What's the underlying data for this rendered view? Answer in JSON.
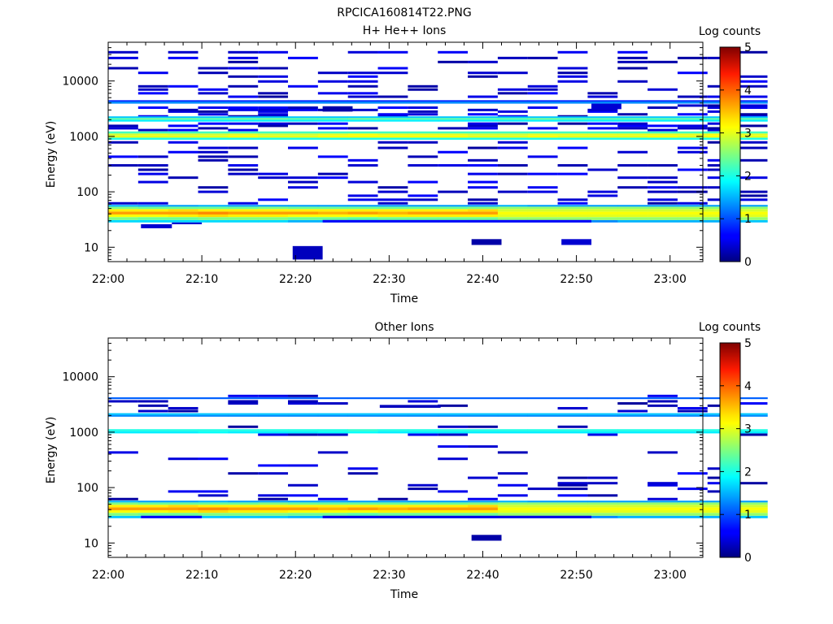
{
  "figure": {
    "title": "RPCICA160814T22.PNG"
  },
  "chart_data": [
    {
      "type": "heatmap",
      "title": "H+ He++ Ions",
      "xlabel": "Time",
      "ylabel": "Energy (eV)",
      "x_ticks": [
        "22:00",
        "22:10",
        "22:20",
        "22:30",
        "22:40",
        "22:50",
        "23:00"
      ],
      "x_tick_minutes": [
        0,
        10,
        20,
        30,
        40,
        50,
        60
      ],
      "xlim_minutes": [
        0,
        63.5
      ],
      "y_scale": "log",
      "ylim": [
        5.5,
        50000
      ],
      "y_ticks": [
        10,
        100,
        1000,
        10000
      ],
      "y_tick_labels": [
        "10",
        "100",
        "1000",
        "10000"
      ],
      "colorbar": {
        "label": "Log counts",
        "min": 0,
        "max": 5,
        "ticks": [
          "0",
          "1",
          "2",
          "3",
          "4",
          "5"
        ]
      },
      "time_bins": 22,
      "bin_width_minutes": 3.2,
      "bands": [
        {
          "e_low": 28,
          "e_high": 31,
          "values": [
            1.7,
            1.7,
            1.7,
            1.7,
            1.7,
            1.7,
            1.5,
            1.5,
            1.5,
            1.5,
            1.5,
            1.5,
            1.3,
            1.3,
            1.3,
            1.3,
            1.3,
            1.5,
            1.5,
            1.5,
            1.5,
            1.6
          ]
        },
        {
          "e_low": 31,
          "e_high": 35,
          "values": [
            2.5,
            2.4,
            2.4,
            2.5,
            2.5,
            2.5,
            2.4,
            2.4,
            2.3,
            2.4,
            2.4,
            2.4,
            2.4,
            2.6,
            2.6,
            2.6,
            2.6,
            2.6,
            2.6,
            2.6,
            2.6,
            2.6
          ]
        },
        {
          "e_low": 35,
          "e_high": 39,
          "values": [
            3.1,
            3.1,
            3.2,
            3.3,
            3.2,
            3.2,
            3.1,
            3.1,
            3.1,
            3.2,
            3.2,
            3.2,
            3.2,
            3.0,
            3.0,
            3.0,
            3.0,
            3.0,
            3.0,
            3.0,
            3.0,
            3.0
          ]
        },
        {
          "e_low": 39,
          "e_high": 44,
          "values": [
            3.6,
            3.6,
            3.6,
            3.7,
            3.6,
            3.6,
            3.6,
            3.5,
            3.6,
            3.5,
            3.6,
            3.6,
            3.6,
            3.1,
            3.1,
            3.1,
            3.1,
            3.1,
            3.1,
            3.1,
            3.1,
            3.1
          ]
        },
        {
          "e_low": 44,
          "e_high": 49,
          "values": [
            3.2,
            3.2,
            3.3,
            3.2,
            3.2,
            3.2,
            3.2,
            3.2,
            3.2,
            3.2,
            3.2,
            3.2,
            3.3,
            2.9,
            2.9,
            2.9,
            2.9,
            2.9,
            2.9,
            2.9,
            2.9,
            2.9
          ]
        },
        {
          "e_low": 49,
          "e_high": 54,
          "values": [
            2.5,
            2.4,
            2.4,
            2.4,
            2.4,
            2.5,
            2.4,
            2.4,
            2.4,
            2.4,
            2.4,
            2.4,
            2.5,
            2.6,
            2.6,
            2.6,
            2.6,
            2.6,
            2.6,
            2.6,
            2.6,
            2.6
          ]
        },
        {
          "e_low": 54,
          "e_high": 58,
          "values": [
            1.5,
            1.4,
            1.4,
            1.5,
            1.4,
            1.4,
            1.4,
            1.4,
            1.4,
            1.4,
            1.4,
            1.4,
            1.4,
            1.5,
            1.4,
            1.4,
            1.4,
            1.4,
            1.4,
            1.4,
            1.4,
            1.4
          ]
        },
        {
          "e_low": 870,
          "e_high": 950,
          "values": [
            2.0,
            2.0,
            2.0,
            2.0,
            2.0,
            2.0,
            2.0,
            2.0,
            2.0,
            2.0,
            2.0,
            2.0,
            2.0,
            2.0,
            2.0,
            2.0,
            2.0,
            2.0,
            2.0,
            2.0,
            2.0,
            2.0
          ]
        },
        {
          "e_low": 950,
          "e_high": 1040,
          "values": [
            3.0,
            3.0,
            3.0,
            3.0,
            3.1,
            3.0,
            3.0,
            3.1,
            3.1,
            3.1,
            3.1,
            3.1,
            3.0,
            3.0,
            3.1,
            3.0,
            3.0,
            3.0,
            3.1,
            3.0,
            3.1,
            3.0
          ]
        },
        {
          "e_low": 1040,
          "e_high": 1130,
          "values": [
            2.9,
            3.0,
            2.9,
            2.9,
            3.0,
            2.9,
            2.9,
            3.0,
            3.1,
            3.0,
            3.0,
            3.0,
            2.9,
            2.9,
            3.0,
            3.0,
            3.0,
            3.0,
            3.0,
            3.0,
            3.1,
            3.0
          ]
        },
        {
          "e_low": 1130,
          "e_high": 1230,
          "values": [
            2.2,
            2.2,
            2.2,
            2.2,
            2.2,
            2.2,
            2.2,
            2.2,
            2.2,
            2.2,
            2.2,
            2.2,
            2.2,
            2.2,
            2.2,
            2.2,
            2.2,
            2.2,
            2.2,
            2.2,
            2.2,
            2.2
          ]
        },
        {
          "e_low": 1850,
          "e_high": 2000,
          "values": [
            1.8,
            1.8,
            1.8,
            1.8,
            1.8,
            1.8,
            1.8,
            1.8,
            1.8,
            1.8,
            1.8,
            1.8,
            1.8,
            1.8,
            1.8,
            1.8,
            1.8,
            1.8,
            1.8,
            1.8,
            1.8,
            1.8
          ]
        },
        {
          "e_low": 2000,
          "e_high": 2150,
          "values": [
            2.3,
            2.4,
            2.4,
            2.3,
            2.4,
            2.4,
            2.3,
            2.3,
            2.4,
            2.3,
            2.3,
            2.3,
            2.3,
            2.3,
            2.4,
            2.3,
            2.3,
            2.3,
            2.3,
            2.3,
            2.3,
            2.3
          ]
        },
        {
          "e_low": 2150,
          "e_high": 2300,
          "values": [
            1.6,
            1.6,
            1.6,
            1.6,
            1.6,
            1.6,
            1.6,
            1.6,
            1.6,
            1.6,
            1.6,
            1.6,
            1.6,
            1.6,
            1.6,
            1.6,
            1.6,
            1.6,
            1.6,
            1.6,
            1.6,
            1.6
          ]
        },
        {
          "e_low": 3900,
          "e_high": 4250,
          "values": [
            1.3,
            1.3,
            1.3,
            1.3,
            1.3,
            1.3,
            1.3,
            1.3,
            1.3,
            1.3,
            1.3,
            1.3,
            1.3,
            1.3,
            1.3,
            1.3,
            1.3,
            1.3,
            1.3,
            1.3,
            1.3,
            1.3
          ]
        },
        {
          "e_low": 4250,
          "e_high": 4500,
          "values": [
            0.8,
            0.8,
            0.8,
            0.8,
            0.8,
            0.8,
            0.8,
            0.8,
            0.8,
            0.8,
            0.8,
            0.8,
            0.8,
            0.8,
            0.8,
            0.8,
            0.8,
            0.8,
            0.8,
            0.8,
            0.8,
            0.8
          ]
        }
      ],
      "sparse_levels_eV": [
        2300,
        2500,
        2800,
        3000,
        3300,
        3600,
        1300,
        1400,
        1550,
        1700,
        780,
        620,
        520,
        430,
        370,
        300,
        250,
        210,
        180,
        150,
        120,
        100,
        85,
        72,
        62,
        14000,
        9800,
        8000,
        7000,
        6000,
        5200,
        12000,
        17000,
        22000,
        26000,
        33000
      ],
      "sparse_levels_low_eV": [
        2300,
        2500,
        2800,
        3000,
        3300,
        3600,
        1300,
        1400,
        1550,
        1700,
        780,
        620,
        520,
        430,
        370,
        300,
        250,
        210,
        180,
        150,
        120,
        100,
        85,
        72,
        62
      ],
      "sparse_density": 0.33,
      "blocks": [
        {
          "t0_minutes": 3.5,
          "t1_minutes": 6.8,
          "e_low": 22,
          "e_high": 26,
          "value": 0.4
        },
        {
          "t0_minutes": 6.8,
          "t1_minutes": 10.0,
          "e_low": 26,
          "e_high": 28,
          "value": 0.4
        },
        {
          "t0_minutes": 19.7,
          "t1_minutes": 22.9,
          "e_low": 6,
          "e_high": 10.5,
          "value": 0.3
        },
        {
          "t0_minutes": 38.8,
          "t1_minutes": 42.0,
          "e_low": 11,
          "e_high": 14,
          "value": 0.2
        },
        {
          "t0_minutes": 48.4,
          "t1_minutes": 51.6,
          "e_low": 11,
          "e_high": 14,
          "value": 0.4
        },
        {
          "t0_minutes": 22.9,
          "t1_minutes": 26.1,
          "e_low": 2800,
          "e_high": 3500,
          "value": 0.2
        },
        {
          "t0_minutes": 51.6,
          "t1_minutes": 54.8,
          "e_low": 3100,
          "e_high": 3900,
          "value": 0.4
        },
        {
          "t0_minutes": 22.9,
          "t1_minutes": 51.6,
          "e_low": 28,
          "e_high": 31,
          "value": 0.6
        }
      ]
    },
    {
      "type": "heatmap",
      "title": "Other Ions",
      "xlabel": "Time",
      "ylabel": "Energy (eV)",
      "x_ticks": [
        "22:00",
        "22:10",
        "22:20",
        "22:30",
        "22:40",
        "22:50",
        "23:00"
      ],
      "x_tick_minutes": [
        0,
        10,
        20,
        30,
        40,
        50,
        60
      ],
      "xlim_minutes": [
        0,
        63.5
      ],
      "y_scale": "log",
      "ylim": [
        5.5,
        50000
      ],
      "y_ticks": [
        10,
        100,
        1000,
        10000
      ],
      "y_tick_labels": [
        "10",
        "100",
        "1000",
        "10000"
      ],
      "colorbar": {
        "label": "Log counts",
        "min": 0,
        "max": 5,
        "ticks": [
          "0",
          "1",
          "2",
          "3",
          "4",
          "5"
        ]
      },
      "time_bins": 22,
      "bin_width_minutes": 3.2,
      "bands": [
        {
          "e_low": 28,
          "e_high": 31,
          "values": [
            1.6,
            1.6,
            1.6,
            1.6,
            1.6,
            1.6,
            1.5,
            1.5,
            1.5,
            1.5,
            1.5,
            1.5,
            1.3,
            1.3,
            1.3,
            1.3,
            1.3,
            1.5,
            1.5,
            1.5,
            1.5,
            1.6
          ]
        },
        {
          "e_low": 31,
          "e_high": 35,
          "values": [
            2.5,
            2.4,
            2.4,
            2.5,
            2.5,
            2.5,
            2.4,
            2.4,
            2.3,
            2.4,
            2.4,
            2.4,
            2.4,
            2.6,
            2.6,
            2.6,
            2.6,
            2.6,
            2.6,
            2.6,
            2.6,
            2.6
          ]
        },
        {
          "e_low": 35,
          "e_high": 39,
          "values": [
            3.1,
            3.1,
            3.2,
            3.3,
            3.2,
            3.2,
            3.1,
            3.1,
            3.1,
            3.2,
            3.2,
            3.2,
            3.2,
            3.0,
            3.0,
            3.0,
            3.0,
            3.0,
            3.0,
            3.0,
            3.0,
            3.0
          ]
        },
        {
          "e_low": 39,
          "e_high": 44,
          "values": [
            3.6,
            3.6,
            3.6,
            3.7,
            3.6,
            3.6,
            3.6,
            3.5,
            3.6,
            3.5,
            3.6,
            3.6,
            3.6,
            3.1,
            3.1,
            3.1,
            3.1,
            3.1,
            3.1,
            3.1,
            3.1,
            3.1
          ]
        },
        {
          "e_low": 44,
          "e_high": 49,
          "values": [
            3.2,
            3.2,
            3.3,
            3.2,
            3.2,
            3.2,
            3.2,
            3.2,
            3.2,
            3.2,
            3.2,
            3.2,
            3.3,
            2.9,
            2.9,
            2.9,
            2.9,
            2.9,
            2.9,
            2.9,
            2.9,
            2.9
          ]
        },
        {
          "e_low": 49,
          "e_high": 54,
          "values": [
            2.5,
            2.4,
            2.4,
            2.4,
            2.4,
            2.5,
            2.4,
            2.4,
            2.4,
            2.4,
            2.4,
            2.4,
            2.5,
            2.6,
            2.6,
            2.6,
            2.6,
            2.6,
            2.6,
            2.6,
            2.6,
            2.6
          ]
        },
        {
          "e_low": 54,
          "e_high": 58,
          "values": [
            1.5,
            1.4,
            1.4,
            1.5,
            1.4,
            1.4,
            1.4,
            1.4,
            1.4,
            1.4,
            1.4,
            1.4,
            1.4,
            1.5,
            1.4,
            1.4,
            1.4,
            1.4,
            1.4,
            1.4,
            1.4,
            1.4
          ]
        },
        {
          "e_low": 950,
          "e_high": 1040,
          "values": [
            1.8,
            1.8,
            1.8,
            1.9,
            1.8,
            1.8,
            1.8,
            1.9,
            1.9,
            1.8,
            1.8,
            1.8,
            1.8,
            1.8,
            1.8,
            1.8,
            1.8,
            1.8,
            1.8,
            1.8,
            1.8,
            1.8
          ]
        },
        {
          "e_low": 1040,
          "e_high": 1130,
          "values": [
            2.0,
            2.0,
            2.0,
            2.0,
            2.0,
            2.0,
            2.0,
            2.0,
            2.1,
            2.0,
            2.0,
            2.0,
            2.0,
            2.0,
            2.0,
            2.0,
            2.0,
            2.0,
            2.0,
            2.0,
            2.0,
            2.0
          ]
        },
        {
          "e_low": 1900,
          "e_high": 2050,
          "values": [
            1.3,
            1.3,
            1.3,
            1.3,
            1.3,
            1.3,
            1.3,
            1.3,
            1.3,
            1.3,
            1.3,
            1.3,
            1.3,
            1.3,
            1.3,
            1.3,
            1.3,
            1.3,
            1.3,
            1.3,
            1.3,
            1.3
          ]
        },
        {
          "e_low": 2050,
          "e_high": 2200,
          "values": [
            1.6,
            1.6,
            1.6,
            1.6,
            1.6,
            1.6,
            1.6,
            1.6,
            1.6,
            1.6,
            1.6,
            1.6,
            1.6,
            1.6,
            1.6,
            1.6,
            1.6,
            1.6,
            1.6,
            1.6,
            1.6,
            1.6
          ]
        },
        {
          "e_low": 3950,
          "e_high": 4250,
          "values": [
            1.1,
            1.1,
            1.1,
            1.1,
            1.1,
            1.1,
            1.1,
            1.1,
            1.1,
            1.1,
            1.1,
            1.1,
            1.1,
            1.1,
            1.1,
            1.1,
            1.1,
            1.1,
            1.1,
            1.1,
            1.1,
            1.1
          ]
        }
      ],
      "sparse_levels_eV": [
        2400,
        2700,
        3000,
        3300,
        3600,
        4500,
        1250,
        900,
        550,
        430,
        330,
        250,
        220,
        180,
        150,
        120,
        110,
        95,
        85,
        72,
        62
      ],
      "sparse_levels_low_eV": [
        2400,
        2700,
        3000,
        3300,
        3600,
        4500,
        1250,
        900,
        550,
        430,
        330,
        250,
        220,
        180,
        150,
        120,
        110,
        95,
        85,
        72,
        62
      ],
      "sparse_density": 0.22,
      "blocks": [
        {
          "t0_minutes": 3.5,
          "t1_minutes": 10.0,
          "e_low": 28,
          "e_high": 31,
          "value": 0.6
        },
        {
          "t0_minutes": 22.9,
          "t1_minutes": 51.6,
          "e_low": 28,
          "e_high": 31,
          "value": 0.5
        },
        {
          "t0_minutes": 38.8,
          "t1_minutes": 42.0,
          "e_low": 11,
          "e_high": 14,
          "value": 0.2
        },
        {
          "t0_minutes": 29.0,
          "t1_minutes": 35.5,
          "e_low": 2750,
          "e_high": 3100,
          "value": 0.3
        }
      ]
    }
  ]
}
